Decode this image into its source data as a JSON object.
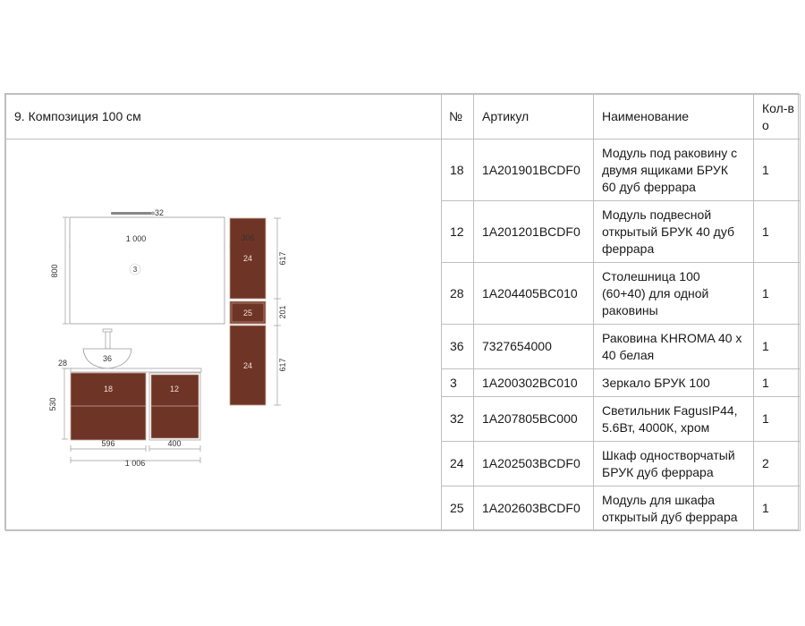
{
  "composition_title": "9. Композиция 100 см",
  "headers": {
    "number": "№",
    "article": "Артикул",
    "name": "Наименование",
    "qty": "Кол-во"
  },
  "rows": [
    {
      "num": "18",
      "article": "1A201901BCDF0",
      "name": "Модуль под раковину с двумя ящиками БРУК 60 дуб феррара",
      "qty": "1"
    },
    {
      "num": "12",
      "article": "1A201201BCDF0",
      "name": "Модуль подвесной открытый БРУК 40 дуб феррара",
      "qty": "1"
    },
    {
      "num": "28",
      "article": "1A204405BC010",
      "name": "Столешница 100 (60+40) для одной раковины",
      "qty": "1"
    },
    {
      "num": "36",
      "article": "7327654000",
      "name": "Раковина KHROMA 40 x 40 белая",
      "qty": "1"
    },
    {
      "num": "3",
      "article": "1A200302BC010",
      "name": "Зеркало БРУК 100",
      "qty": "1"
    },
    {
      "num": "32",
      "article": "1A207805BC000",
      "name": "Светильник FagusIP44, 5.6Вт, 4000К, хром",
      "qty": "1"
    },
    {
      "num": "24",
      "article": "1A202503BCDF0",
      "name": "Шкаф одностворчатый БРУК дуб феррара",
      "qty": "2"
    },
    {
      "num": "25",
      "article": "1A202603BCDF0",
      "name": "Модуль для шкафа открытый дуб феррара",
      "qty": "1"
    }
  ],
  "drawing": {
    "dim_mirror_width": "1 000",
    "dim_mirror_height": "800",
    "label_light": "32",
    "label_mirror": "3",
    "dim_cabinet_width": "306",
    "label_cabinet_top": "24",
    "label_open_module": "25",
    "label_cabinet_bottom": "24",
    "dim_cabinet_top_h": "617",
    "dim_open_module_h": "201",
    "dim_cabinet_bottom_h": "617",
    "label_sink": "36",
    "dim_top_thickness": "28",
    "dim_vanity_height": "530",
    "label_vanity_main": "18",
    "label_vanity_side": "12",
    "dim_vanity_main_w": "596",
    "dim_vanity_side_w": "400",
    "dim_total_w": "1 006"
  },
  "colors": {
    "wood": "#6e3526",
    "wood_line": "#c9a79a",
    "border": "#bfbfbf",
    "dim_line": "#9a9a9a"
  }
}
